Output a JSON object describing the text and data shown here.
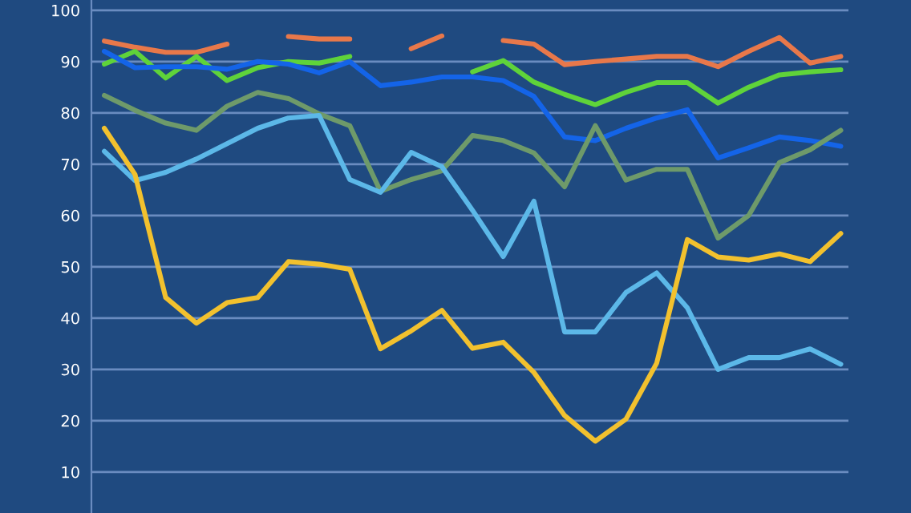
{
  "chart_data": {
    "type": "line",
    "categories": [
      null,
      null,
      null,
      null,
      null,
      null,
      null,
      null,
      null,
      null,
      null,
      null,
      null,
      null,
      null,
      null,
      null,
      null,
      null,
      null,
      null,
      null,
      null,
      null,
      null
    ],
    "series": [
      {
        "color": "#e8784a",
        "values": [
          94,
          92.8,
          91.8,
          91.8,
          93.4,
          null,
          94.9,
          94.4,
          94.4,
          null,
          92.5,
          95,
          null,
          94.1,
          93.4,
          89.4,
          90,
          90.5,
          91,
          91,
          89,
          92,
          94.7,
          89.7,
          91
        ]
      },
      {
        "color": "#5fd33a",
        "values": [
          89.5,
          92,
          86.8,
          91,
          86.3,
          88.8,
          90,
          89.7,
          91,
          null,
          null,
          null,
          88,
          90.2,
          86,
          83.6,
          81.6,
          84,
          85.9,
          85.9,
          81.9,
          85,
          87.4,
          88,
          88.4
        ]
      },
      {
        "color": "#1464e8",
        "values": [
          92,
          88.8,
          89,
          89,
          88.5,
          90,
          89.5,
          87.8,
          90,
          85.3,
          86,
          87,
          87,
          86.3,
          83.2,
          75.3,
          74.6,
          77,
          79,
          80.6,
          71.2,
          73.2,
          75.3,
          74.6,
          73.5
        ]
      },
      {
        "color": "#6e9a6a",
        "values": [
          83.4,
          80.5,
          78,
          76.6,
          81.3,
          84,
          82.8,
          79.8,
          77.5,
          64.7,
          67,
          68.7,
          75.6,
          74.6,
          72.2,
          65.6,
          77.5,
          66.9,
          69,
          69,
          55.6,
          60,
          70.3,
          72.8,
          76.6
        ]
      },
      {
        "color": "#5cb8e8",
        "values": [
          72.5,
          66.8,
          68.4,
          71,
          74,
          77,
          79,
          79.5,
          67,
          64.5,
          72.3,
          69.5,
          61,
          52,
          62.8,
          37.3,
          37.3,
          45,
          48.8,
          42,
          30,
          32.3,
          32.3,
          34,
          31
        ]
      },
      {
        "color": "#f2c12e",
        "values": [
          77,
          68,
          44,
          39,
          43,
          44,
          51,
          50.5,
          49.5,
          34,
          37.5,
          41.5,
          34.1,
          35.3,
          29.4,
          21,
          16,
          20.3,
          31.2,
          55.3,
          51.9,
          51.3,
          52.5,
          51,
          56.5
        ]
      }
    ],
    "ylim": [
      2,
      102
    ],
    "yticks": [
      10,
      20,
      30,
      40,
      50,
      60,
      70,
      80,
      90,
      100
    ],
    "grid": "y",
    "marker": "none",
    "line_style": "solid",
    "tick_labels": "y"
  }
}
